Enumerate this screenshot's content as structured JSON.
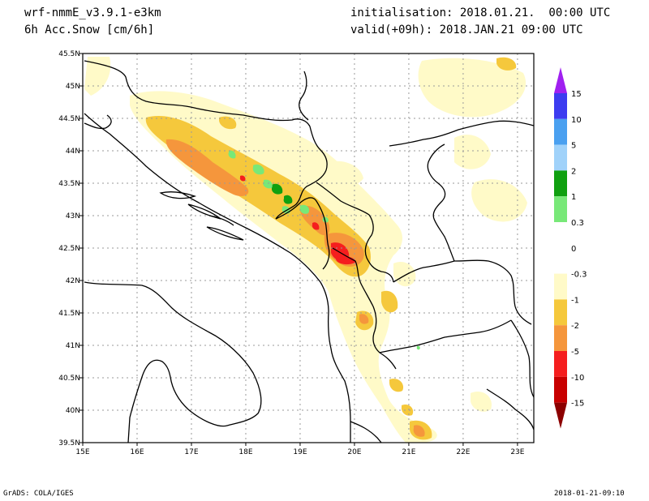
{
  "header": {
    "model": "wrf-nmmE_v3.9.1-e3km",
    "field": "6h Acc.Snow [cm/6h]",
    "init": "initialisation: 2018.01.21.  00:00 UTC",
    "valid": "valid(+09h): 2018.JAN.21 09:00 UTC"
  },
  "footer": {
    "left": "GrADS: COLA/IGES",
    "right": "2018-01-21-09:10"
  },
  "axes": {
    "lon_labels": [
      "15E",
      "16E",
      "17E",
      "18E",
      "19E",
      "20E",
      "21E",
      "22E",
      "23E"
    ],
    "lat_labels": [
      "45.5N",
      "45N",
      "44.5N",
      "44N",
      "43.5N",
      "43N",
      "42.5N",
      "42N",
      "41.5N",
      "41N",
      "40.5N",
      "40N",
      "39.5N"
    ],
    "lon_range": [
      15,
      23.3
    ],
    "lat_range": [
      39.5,
      45.5
    ]
  },
  "colorbar": {
    "labels": [
      "15",
      "10",
      "5",
      "2",
      "1",
      "0.3",
      "0",
      "-0.3",
      "-1",
      "-2",
      "-5",
      "-10",
      "-15"
    ],
    "colors": [
      "#a020f0",
      "#3c3cf0",
      "#4aa0f0",
      "#a0d2fa",
      "#10a010",
      "#78e878",
      "#ffffff",
      "#fffac8",
      "#f5c83c",
      "#f5963c",
      "#f51e1e",
      "#c80000",
      "#8c0000"
    ],
    "top_color": "#a020f0",
    "bottom_color": "#8c0000"
  },
  "colors": {
    "light": "#fffac8",
    "yellow": "#f5c83c",
    "orange": "#f5963c",
    "red": "#f51e1e",
    "green": "#10a010",
    "lightgreen": "#78e878"
  }
}
